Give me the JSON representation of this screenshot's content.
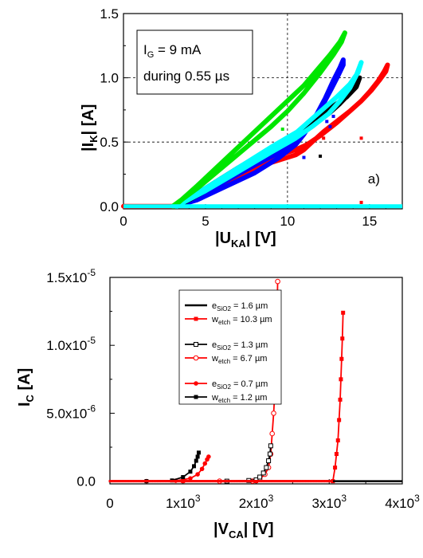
{
  "chart_data": [
    {
      "type": "scatter",
      "label": "a)",
      "annotation": {
        "line1_main": "I",
        "line1_sub": "G",
        "line1_rest": " = 9 mA",
        "line2": "during 0.55 µs"
      },
      "ylabel": {
        "main": "|I",
        "sub": "K",
        "rest": "|  [A]"
      },
      "xlabel": {
        "main": "|U",
        "sub": "KA",
        "rest": "|   [V]"
      },
      "xlim": [
        0,
        17
      ],
      "ylim": [
        -0.02,
        1.5
      ],
      "xticks": [
        0,
        5,
        10,
        15
      ],
      "xtick_labels": [
        "0",
        "5",
        "10",
        "15"
      ],
      "yticks": [
        0,
        0.5,
        1.0,
        1.5
      ],
      "ytick_labels": [
        "0.0",
        "0.5",
        "1.0",
        "1.5"
      ],
      "dashed_gridlines": {
        "x": [
          10
        ],
        "y": [
          0.5,
          1.0
        ]
      },
      "series": [
        {
          "color": "#ff0000",
          "x": [
            0,
            3.2,
            5,
            7,
            9,
            10.5,
            11.2,
            12,
            13,
            13.8,
            14.5,
            15,
            15.5,
            15.9,
            16.1,
            16.0,
            15.6,
            15.1,
            14.5,
            13.8,
            13,
            12.2,
            11.5,
            11.0,
            10.5,
            8.5,
            6.5,
            4.5,
            3.3
          ],
          "y": [
            0,
            0,
            0.12,
            0.25,
            0.38,
            0.44,
            0.48,
            0.55,
            0.65,
            0.74,
            0.82,
            0.89,
            0.97,
            1.05,
            1.1,
            1.05,
            0.98,
            0.9,
            0.82,
            0.74,
            0.66,
            0.58,
            0.5,
            0.44,
            0.4,
            0.32,
            0.2,
            0.06,
            0
          ]
        },
        {
          "color": "#0000ff",
          "x": [
            3.2,
            4.5,
            6,
            8,
            9.5,
            10.5,
            11.2,
            11.8,
            12.3,
            12.8,
            13.2,
            13.4,
            13.4,
            13.1,
            12.7,
            12.2,
            11.6,
            11.0,
            10.5,
            9.5,
            8,
            6,
            4.5,
            3.2
          ],
          "y": [
            0,
            0.08,
            0.18,
            0.32,
            0.42,
            0.5,
            0.6,
            0.72,
            0.84,
            0.98,
            1.08,
            1.14,
            1.1,
            1.02,
            0.92,
            0.8,
            0.68,
            0.56,
            0.48,
            0.38,
            0.26,
            0.14,
            0.05,
            0
          ]
        },
        {
          "color": "#000000",
          "x": [
            3.2,
            5,
            7,
            9,
            10.5,
            11.5,
            12.5,
            13.2,
            13.8,
            14.2,
            14.4,
            14.2,
            13.6,
            12.8,
            12,
            11.2,
            10.5,
            9,
            7,
            5,
            3.3
          ],
          "y": [
            0,
            0.14,
            0.3,
            0.45,
            0.55,
            0.63,
            0.72,
            0.8,
            0.88,
            0.95,
            1.0,
            0.93,
            0.85,
            0.78,
            0.7,
            0.62,
            0.54,
            0.42,
            0.28,
            0.12,
            0
          ]
        },
        {
          "color": "#00ffff",
          "x": [
            3.2,
            5,
            7,
            9,
            10.5,
            11.5,
            12.5,
            13.2,
            13.8,
            14.2,
            14.5,
            14.3,
            13.8,
            13,
            12.2,
            11.4,
            10.6,
            9,
            7,
            5,
            3.3
          ],
          "y": [
            0,
            0.12,
            0.27,
            0.42,
            0.53,
            0.62,
            0.72,
            0.82,
            0.92,
            1.02,
            1.12,
            1.04,
            0.95,
            0.85,
            0.76,
            0.67,
            0.58,
            0.46,
            0.3,
            0.14,
            0
          ]
        },
        {
          "color": "#00e600",
          "x": [
            3.0,
            4.5,
            6,
            7.5,
            9,
            10,
            11,
            12,
            12.8,
            13.3,
            13.5,
            13.2,
            12.6,
            11.8,
            11,
            10,
            9,
            7.5,
            6,
            4.5,
            3.1
          ],
          "y": [
            0,
            0.14,
            0.3,
            0.46,
            0.62,
            0.74,
            0.88,
            1.04,
            1.18,
            1.28,
            1.35,
            1.28,
            1.18,
            1.06,
            0.94,
            0.82,
            0.7,
            0.52,
            0.34,
            0.16,
            0
          ]
        }
      ],
      "outlier_points": [
        {
          "color": "#00e600",
          "x": 9.7,
          "y": 0.6
        },
        {
          "color": "#0000ff",
          "x": 11.0,
          "y": 0.38
        },
        {
          "color": "#0000ff",
          "x": 12.4,
          "y": 0.66
        },
        {
          "color": "#0000ff",
          "x": 12.6,
          "y": 0.62
        },
        {
          "color": "#0000ff",
          "x": 12.8,
          "y": 0.7
        },
        {
          "color": "#000000",
          "x": 12.0,
          "y": 0.39
        },
        {
          "color": "#ff0000",
          "x": 12.2,
          "y": 0.53
        },
        {
          "color": "#ff0000",
          "x": 14.5,
          "y": 0.53
        },
        {
          "color": "#ff0000",
          "x": 14.5,
          "y": 0.03
        }
      ],
      "baseline": {
        "color": "#00ffff",
        "x": [
          0,
          17
        ],
        "y": [
          0,
          0
        ]
      }
    },
    {
      "type": "line",
      "ylabel": {
        "main": "I",
        "sub": "C",
        "rest": "  [A]"
      },
      "xlabel": {
        "main": "|V",
        "sub": "CA",
        "rest": "|  [V]"
      },
      "xlim": [
        0,
        4000
      ],
      "ylim": [
        -2e-07,
        1.5e-05
      ],
      "xticks": [
        0,
        1000,
        2000,
        3000,
        4000
      ],
      "xtick_labels": [
        {
          "main": "0",
          "sup": ""
        },
        {
          "main": "1x10",
          "sup": "3"
        },
        {
          "main": "2x10",
          "sup": "3"
        },
        {
          "main": "3x10",
          "sup": "3"
        },
        {
          "main": "4x10",
          "sup": "3"
        }
      ],
      "yticks": [
        0,
        5e-06,
        1e-05,
        1.5e-05
      ],
      "ytick_labels": [
        {
          "main": "0.0",
          "sup": ""
        },
        {
          "main": "5.0x10",
          "sup": "-6"
        },
        {
          "main": "1.0x10",
          "sup": "-5"
        },
        {
          "main": "1.5x10",
          "sup": "-5"
        }
      ],
      "legend": [
        {
          "main": "e",
          "sub": "SiO2",
          "rest": " = 1.6 µm"
        },
        {
          "main": "w",
          "sub": "etch",
          "rest": " = 10.3 µm"
        },
        {
          "main": "e",
          "sub": "SiO2",
          "rest": " = 1.3 µm"
        },
        {
          "main": "w",
          "sub": "etch",
          "rest": " = 6.7 µm"
        },
        {
          "main": "e",
          "sub": "SiO2",
          "rest": " = 0.7 µm"
        },
        {
          "main": "w",
          "sub": "etch",
          "rest": " = 1.2 µm"
        }
      ],
      "legend_position": "upper-left",
      "series": [
        {
          "color": "#ff0000",
          "marker": "square-filled",
          "x": [
            0,
            1000,
            2000,
            3050,
            3080,
            3100,
            3120,
            3135,
            3150,
            3160,
            3170,
            3180,
            3190
          ],
          "y": [
            0,
            0,
            0,
            0,
            1e-06,
            2e-06,
            3e-06,
            4.5e-06,
            6e-06,
            7.5e-06,
            9e-06,
            1.05e-05,
            1.24e-05
          ]
        },
        {
          "color": "#ff0000",
          "marker": "circle-open",
          "x": [
            0,
            1500,
            1950,
            2050,
            2120,
            2170,
            2200,
            2220,
            2240,
            2255,
            2265,
            2275,
            2285,
            2295
          ],
          "y": [
            0,
            0,
            0,
            1.5e-07,
            5e-07,
            1e-06,
            2e-06,
            3.5e-06,
            5e-06,
            6.5e-06,
            8e-06,
            9.5e-06,
            1.2e-05,
            1.47e-05
          ]
        },
        {
          "color": "#000000",
          "marker": "square-open",
          "x": [
            0,
            1600,
            1900,
            2000,
            2050,
            2100,
            2140,
            2170,
            2190,
            2200
          ],
          "y": [
            0,
            0,
            5e-08,
            1e-07,
            3e-07,
            6e-07,
            1e-06,
            1.5e-06,
            2e-06,
            2.6e-06
          ]
        },
        {
          "color": "#ff0000",
          "marker": "circle-filled",
          "x": [
            0,
            500,
            900,
            1100,
            1200,
            1260,
            1300,
            1330,
            1350
          ],
          "y": [
            0,
            0,
            3e-08,
            2e-07,
            5e-07,
            9e-07,
            1.3e-06,
            1.6e-06,
            1.8e-06
          ]
        },
        {
          "color": "#000000",
          "marker": "square-filled",
          "x": [
            0,
            500,
            850,
            1000,
            1100,
            1150,
            1180,
            1200,
            1215
          ],
          "y": [
            0,
            0,
            5e-08,
            3e-07,
            7e-07,
            1.1e-06,
            1.5e-06,
            1.8e-06,
            2.1e-06
          ]
        },
        {
          "color": "#000000",
          "marker": "dash",
          "x": [
            0,
            4000
          ],
          "y": [
            0,
            0
          ]
        }
      ]
    }
  ]
}
